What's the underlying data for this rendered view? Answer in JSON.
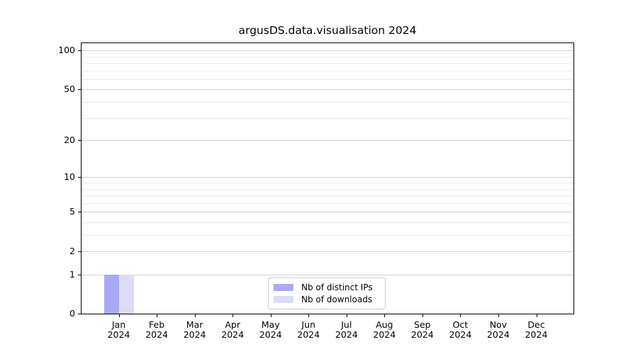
{
  "chart_data": {
    "type": "bar",
    "title": "argusDS.data.visualisation 2024",
    "categories": [
      "Jan 2024",
      "Feb 2024",
      "Mar 2024",
      "Apr 2024",
      "May 2024",
      "Jun 2024",
      "Jul 2024",
      "Aug 2024",
      "Sep 2024",
      "Oct 2024",
      "Nov 2024",
      "Dec 2024"
    ],
    "series": [
      {
        "name": "Nb of distinct IPs",
        "color": "#a9a9f4",
        "values": [
          1,
          0,
          0,
          0,
          0,
          0,
          0,
          0,
          0,
          0,
          0,
          0
        ]
      },
      {
        "name": "Nb of downloads",
        "color": "#dcdcf9",
        "values": [
          1,
          0,
          0,
          0,
          0,
          0,
          0,
          0,
          0,
          0,
          0,
          0
        ]
      }
    ],
    "xlabel": "",
    "ylabel": "",
    "yscale": "log1p",
    "ylim": [
      0,
      115
    ],
    "y_tick_values": [
      0,
      1,
      2,
      5,
      10,
      20,
      50,
      100
    ],
    "y_tick_labels": [
      "0",
      "1",
      "2",
      "5",
      "10",
      "20",
      "50",
      "100"
    ],
    "y_minor_gridline_values": [
      3,
      4,
      6,
      7,
      8,
      9,
      30,
      40,
      60,
      70,
      80,
      90
    ],
    "grid": true,
    "legend_position": "lower center"
  },
  "colors": {
    "background": "#ffffff",
    "text": "#000000",
    "axis": "#000000",
    "grid_major": "#d2d2d2",
    "grid_minor": "#ececec",
    "legend_border": "#cccccc",
    "bar_distinct_ips": "#a9a9f4",
    "bar_downloads": "#dcdcf9"
  }
}
